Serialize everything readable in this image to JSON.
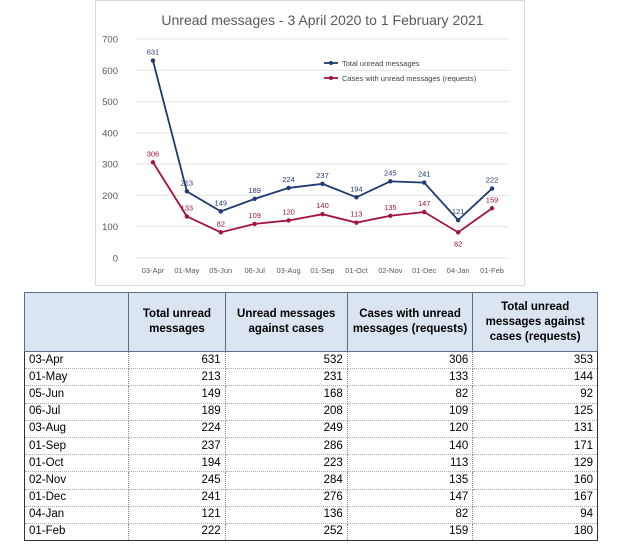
{
  "chart_data": {
    "type": "line",
    "title": "Unread messages - 3 April 2020 to 1 February 2021",
    "categories": [
      "03-Apr",
      "01-May",
      "05-Jun",
      "06-Jul",
      "03-Aug",
      "01-Sep",
      "01-Oct",
      "02-Nov",
      "01-Dec",
      "04-Jan",
      "01-Feb"
    ],
    "ylim": [
      0,
      700
    ],
    "yticks": [
      0,
      100,
      200,
      300,
      400,
      500,
      600,
      700
    ],
    "grid": true,
    "legend": "top-right",
    "series": [
      {
        "name": "Total unread messages",
        "color": "#1f3b73",
        "values": [
          631,
          213,
          149,
          189,
          224,
          237,
          194,
          245,
          241,
          121,
          222
        ]
      },
      {
        "name": "Cases with unread messages (requests)",
        "color": "#a3133f",
        "values": [
          306,
          133,
          82,
          109,
          120,
          140,
          113,
          135,
          147,
          82,
          159
        ]
      }
    ]
  },
  "table": {
    "headers": [
      "",
      "Total unread messages",
      "Unread messages against cases",
      "Cases with unread messages (requests)",
      "Total unread messages against cases (requests)"
    ],
    "rows": [
      [
        "03-Apr",
        "631",
        "532",
        "306",
        "353"
      ],
      [
        "01-May",
        "213",
        "231",
        "133",
        "144"
      ],
      [
        "05-Jun",
        "149",
        "168",
        "82",
        "92"
      ],
      [
        "06-Jul",
        "189",
        "208",
        "109",
        "125"
      ],
      [
        "03-Aug",
        "224",
        "249",
        "120",
        "131"
      ],
      [
        "01-Sep",
        "237",
        "286",
        "140",
        "171"
      ],
      [
        "01-Oct",
        "194",
        "223",
        "113",
        "129"
      ],
      [
        "02-Nov",
        "245",
        "284",
        "135",
        "160"
      ],
      [
        "01-Dec",
        "241",
        "276",
        "147",
        "167"
      ],
      [
        "04-Jan",
        "121",
        "136",
        "82",
        "94"
      ],
      [
        "01-Feb",
        "222",
        "252",
        "159",
        "180"
      ]
    ]
  }
}
